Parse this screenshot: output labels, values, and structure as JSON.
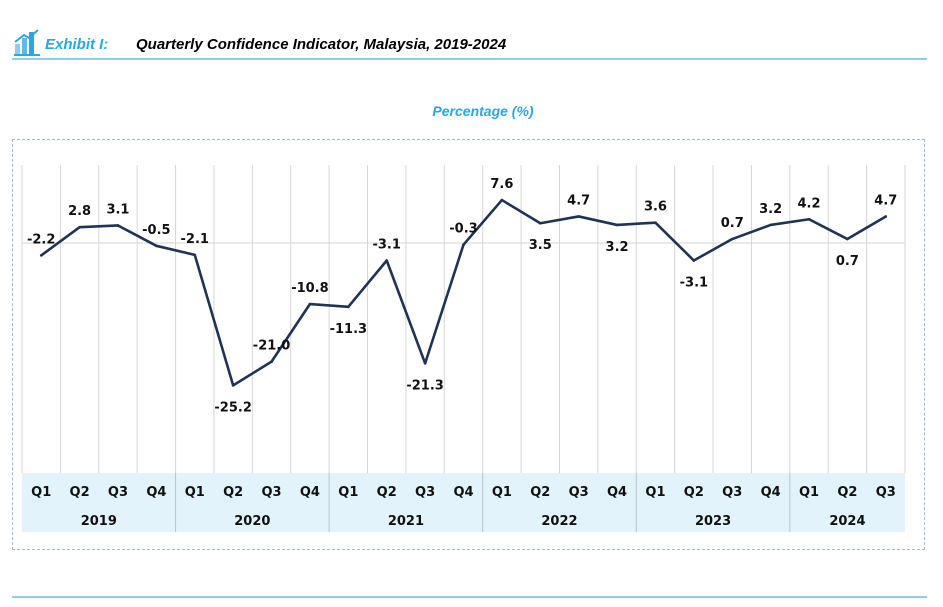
{
  "header": {
    "exhibit": "Exhibit I:",
    "title": "Quarterly Confidence Indicator, Malaysia, 2019-2024"
  },
  "colors": {
    "accent": "#29a8e0",
    "line": "#1f3354",
    "axis_band": "#e3f3fc",
    "rule": "#8ecdf0"
  },
  "chart_data": {
    "type": "line",
    "title": "Quarterly Confidence Indicator, Malaysia, 2019-2024",
    "ylabel": "Percentage (%)",
    "xlabel": "",
    "ylim": [
      -32,
      12
    ],
    "grid": "vertical",
    "categories": [
      "Q1",
      "Q2",
      "Q3",
      "Q4",
      "Q1",
      "Q2",
      "Q3",
      "Q4",
      "Q1",
      "Q2",
      "Q3",
      "Q4",
      "Q1",
      "Q2",
      "Q3",
      "Q4",
      "Q1",
      "Q2",
      "Q3",
      "Q4",
      "Q1",
      "Q2",
      "Q3"
    ],
    "years": [
      {
        "label": "2019",
        "quarters": 4
      },
      {
        "label": "2020",
        "quarters": 4
      },
      {
        "label": "2021",
        "quarters": 4
      },
      {
        "label": "2022",
        "quarters": 4
      },
      {
        "label": "2023",
        "quarters": 4
      },
      {
        "label": "2024",
        "quarters": 3
      }
    ],
    "series": [
      {
        "values": [
          -2.2,
          2.8,
          3.1,
          -0.5,
          -2.1,
          -25.2,
          -21.0,
          -10.8,
          -11.3,
          -3.1,
          -21.3,
          -0.3,
          7.6,
          3.5,
          4.7,
          3.2,
          3.6,
          -3.1,
          0.7,
          3.2,
          4.2,
          0.7,
          4.7
        ],
        "labels": [
          "-2.2",
          "2.8",
          "3.1",
          "-0.5",
          "-2.1",
          "-25.2",
          "-21.0",
          "-10.8",
          "-11.3",
          "-3.1",
          "-21.3",
          "-0.3",
          "7.6",
          "3.5",
          "4.7",
          "3.2",
          "3.6",
          "-3.1",
          "0.7",
          "3.2",
          "4.2",
          "0.7",
          "4.7"
        ]
      }
    ]
  }
}
